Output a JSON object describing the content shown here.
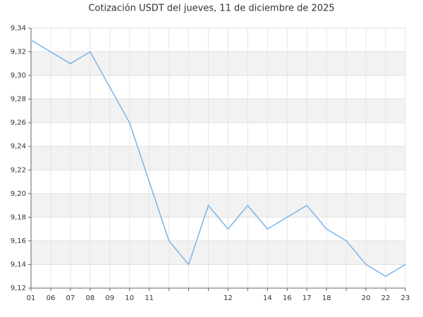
{
  "chart_data": {
    "type": "line",
    "title": "Cotización USDT del jueves, 11 de diciembre de 2025",
    "categories": [
      "01",
      "06",
      "07",
      "08",
      "09",
      "10",
      "11",
      null,
      null,
      null,
      "12",
      null,
      "14",
      "16",
      "17",
      "18",
      null,
      "20",
      "22",
      "23"
    ],
    "series": [
      {
        "name": "USDT",
        "color": "#7cb5ec",
        "values": [
          9.33,
          9.32,
          9.31,
          9.32,
          9.29,
          9.26,
          9.21,
          9.16,
          9.14,
          9.19,
          9.17,
          9.19,
          9.17,
          9.18,
          9.19,
          9.17,
          9.16,
          9.14,
          9.13,
          9.14
        ]
      }
    ],
    "ylim": [
      9.12,
      9.34
    ],
    "yticks": [
      {
        "value": 9.12,
        "label": "9,12"
      },
      {
        "value": 9.14,
        "label": "9,14"
      },
      {
        "value": 9.16,
        "label": "9,16"
      },
      {
        "value": 9.18,
        "label": "9,18"
      },
      {
        "value": 9.2,
        "label": "9,20"
      },
      {
        "value": 9.22,
        "label": "9,22"
      },
      {
        "value": 9.24,
        "label": "9,24"
      },
      {
        "value": 9.26,
        "label": "9,26"
      },
      {
        "value": 9.28,
        "label": "9,28"
      },
      {
        "value": 9.3,
        "label": "9,30"
      },
      {
        "value": 9.32,
        "label": "9,32"
      },
      {
        "value": 9.34,
        "label": "9,34"
      }
    ],
    "grid": true
  }
}
